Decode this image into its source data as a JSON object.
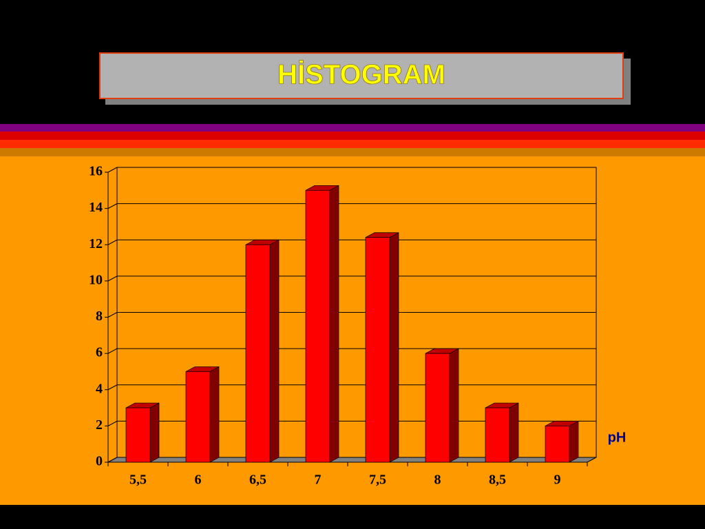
{
  "chart_data": {
    "type": "bar3d",
    "title": "HİSTOGRAM",
    "x_label": "pH",
    "categories": [
      "5,5",
      "6",
      "6,5",
      "7",
      "7,5",
      "8",
      "8,5",
      "9"
    ],
    "values": [
      3,
      5,
      12,
      15,
      12.4,
      6,
      3,
      2
    ],
    "color": "#ff0000",
    "ylim": [
      0,
      16
    ],
    "yticks": [
      0,
      2,
      4,
      6,
      8,
      10,
      12,
      14,
      16
    ],
    "grid": true
  }
}
